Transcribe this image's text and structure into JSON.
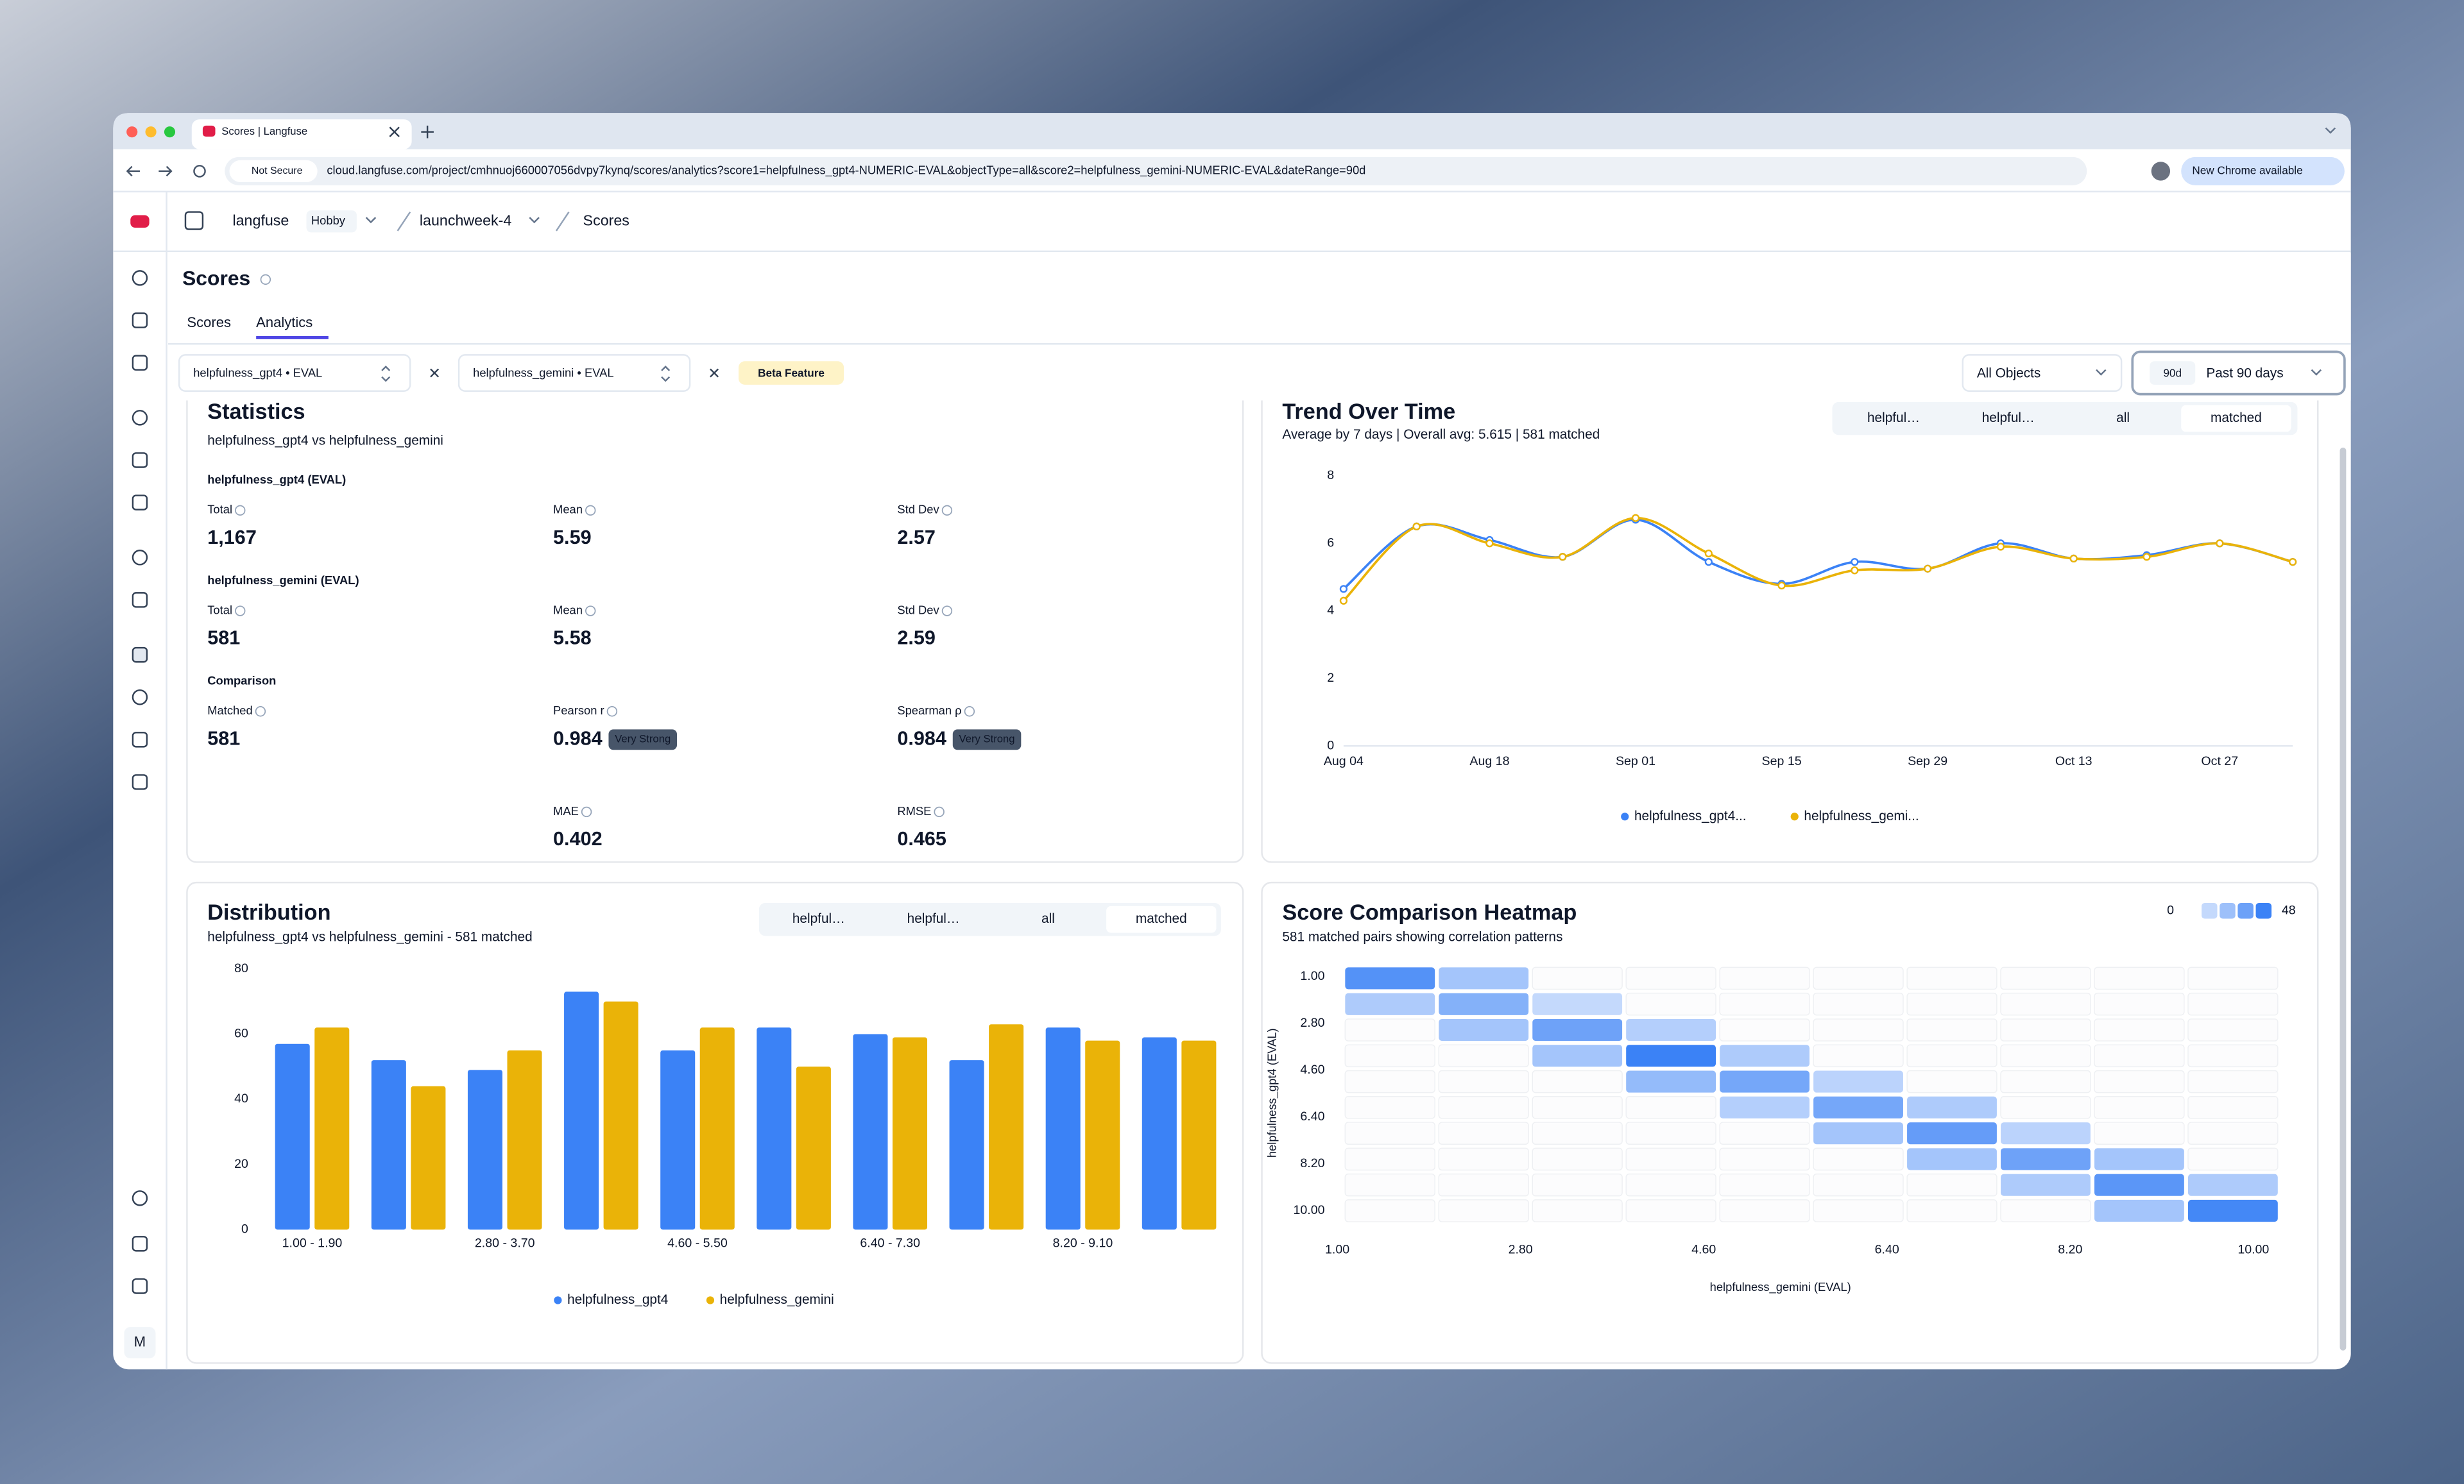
{
  "browser": {
    "tab_title": "Scores | Langfuse",
    "security": "Not Secure",
    "url": "cloud.langfuse.com/project/cmhnuoj660007056dvpy7kynq/scores/analytics?score1=helpfulness_gpt4-NUMERIC-EVAL&objectType=all&score2=helpfulness_gemini-NUMERIC-EVAL&dateRange=90d",
    "update_button": "New Chrome available"
  },
  "breadcrumb": {
    "org": "langfuse",
    "plan": "Hobby",
    "project": "launchweek-4",
    "page": "Scores"
  },
  "sidebar": {
    "avatar": "M"
  },
  "header": {
    "title": "Scores",
    "tabs": [
      "Scores",
      "Analytics"
    ]
  },
  "filters": {
    "score1": "helpfulness_gpt4 • EVAL",
    "score2": "helpfulness_gemini • EVAL",
    "badge": "Beta Feature",
    "object_type": "All Objects",
    "range_short": "90d",
    "range": "Past 90 days"
  },
  "statistics": {
    "title": "Statistics",
    "subtitle": "helpfulness_gpt4 vs helpfulness_gemini",
    "sections": [
      {
        "heading": "helpfulness_gpt4 (EVAL)",
        "metrics": [
          {
            "label": "Total",
            "value": "1,167"
          },
          {
            "label": "Mean",
            "value": 5.59
          },
          {
            "label": "Std Dev",
            "value": 2.57
          }
        ]
      },
      {
        "heading": "helpfulness_gemini (EVAL)",
        "metrics": [
          {
            "label": "Total",
            "value": 581
          },
          {
            "label": "Mean",
            "value": 5.58
          },
          {
            "label": "Std Dev",
            "value": 2.59
          }
        ]
      },
      {
        "heading": "Comparison",
        "metrics": [
          {
            "label": "Matched",
            "value": 581
          },
          {
            "label": "Pearson r",
            "value": 0.984,
            "badge": "Very Strong"
          },
          {
            "label": "Spearman ρ",
            "value": 0.984,
            "badge": "Very Strong"
          },
          {
            "label": "MAE",
            "value": 0.402
          },
          {
            "label": "RMSE",
            "value": 0.465
          }
        ]
      }
    ]
  },
  "chart_data": [
    {
      "type": "line",
      "title": "Trend Over Time",
      "subtitle": "Average by 7 days | Overall avg: 5.615 | 581 matched",
      "tabs": [
        "helpful…",
        "helpful…",
        "all",
        "matched"
      ],
      "categories": [
        "Aug 04",
        null,
        "Aug 18",
        null,
        "Sep 01",
        null,
        "Sep 15",
        null,
        "Sep 29",
        null,
        "Oct 13",
        null,
        "Oct 27",
        null
      ],
      "ylim": [
        0,
        8
      ],
      "yticks": [
        0,
        2,
        4,
        6,
        8
      ],
      "grid": false,
      "series": [
        {
          "name": "helpfulness_gpt4...",
          "color": "#3b82f6",
          "values": [
            4.65,
            6.5,
            6.1,
            5.6,
            6.7,
            5.45,
            4.8,
            5.45,
            5.25,
            6.0,
            5.55,
            5.65,
            6.0,
            5.45
          ]
        },
        {
          "name": "helpfulness_gemi...",
          "color": "#eab308",
          "values": [
            4.3,
            6.5,
            6.0,
            5.6,
            6.75,
            5.7,
            4.75,
            5.2,
            5.25,
            5.9,
            5.55,
            5.6,
            6.0,
            5.45
          ]
        }
      ]
    },
    {
      "type": "bar",
      "title": "Distribution",
      "subtitle": "helpfulness_gpt4 vs helpfulness_gemini - 581 matched",
      "tabs": [
        "helpful…",
        "helpful…",
        "all",
        "matched"
      ],
      "categories": [
        "1.00 - 1.90",
        null,
        "2.80 - 3.70",
        null,
        "4.60 - 5.50",
        null,
        "6.40 - 7.30",
        null,
        "8.20 - 9.10",
        null
      ],
      "ylim": [
        0,
        80
      ],
      "yticks": [
        0,
        20,
        40,
        60,
        80
      ],
      "grid": false,
      "series": [
        {
          "name": "helpfulness_gpt4",
          "color": "#3b82f6",
          "values": [
            57,
            52,
            49,
            73,
            55,
            62,
            60,
            52,
            62,
            59
          ]
        },
        {
          "name": "helpfulness_gemini",
          "color": "#eab308",
          "values": [
            62,
            44,
            55,
            70,
            62,
            50,
            59,
            63,
            58,
            58
          ]
        }
      ]
    },
    {
      "type": "heatmap",
      "title": "Score Comparison Heatmap",
      "subtitle": "581 matched pairs showing correlation patterns",
      "x_label": "helpfulness_gemini (EVAL)",
      "y_label": "helpfulness_gpt4 (EVAL)",
      "xlim": [
        1,
        10
      ],
      "xticks": [
        {
          "value": 1,
          "label": "1.00"
        },
        {
          "value": 2.8,
          "label": "2.80"
        },
        {
          "value": 4.6,
          "label": "4.60"
        },
        {
          "value": 6.4,
          "label": "6.40"
        },
        {
          "value": 8.2,
          "label": "8.20"
        },
        {
          "value": 10,
          "label": "10.00"
        }
      ],
      "ylim": [
        1,
        10
      ],
      "yticks": [
        {
          "value": 1,
          "label": "1.00"
        },
        {
          "value": 2.8,
          "label": "2.80"
        },
        {
          "value": 4.6,
          "label": "4.60"
        },
        {
          "value": 6.4,
          "label": "6.40"
        },
        {
          "value": 8.2,
          "label": "8.20"
        },
        {
          "value": 10,
          "label": "10.00"
        }
      ],
      "color": "#3b82f6",
      "color_range": [
        0,
        48
      ],
      "values": [
        [
          40,
          15,
          0,
          0,
          0,
          0,
          0,
          0,
          0,
          0
        ],
        [
          12,
          25,
          5,
          0,
          0,
          0,
          0,
          0,
          0,
          0
        ],
        [
          0,
          15,
          32,
          10,
          0,
          0,
          0,
          0,
          0,
          0
        ],
        [
          0,
          0,
          15,
          48,
          12,
          0,
          0,
          0,
          0,
          0
        ],
        [
          0,
          0,
          0,
          20,
          30,
          8,
          0,
          0,
          0,
          0
        ],
        [
          0,
          0,
          0,
          0,
          10,
          30,
          12,
          0,
          0,
          0
        ],
        [
          0,
          0,
          0,
          0,
          0,
          15,
          35,
          8,
          0,
          0
        ],
        [
          0,
          0,
          0,
          0,
          0,
          0,
          15,
          32,
          15,
          0
        ],
        [
          0,
          0,
          0,
          0,
          0,
          0,
          0,
          12,
          38,
          12
        ],
        [
          0,
          0,
          0,
          0,
          0,
          0,
          0,
          0,
          15,
          45
        ]
      ]
    }
  ]
}
